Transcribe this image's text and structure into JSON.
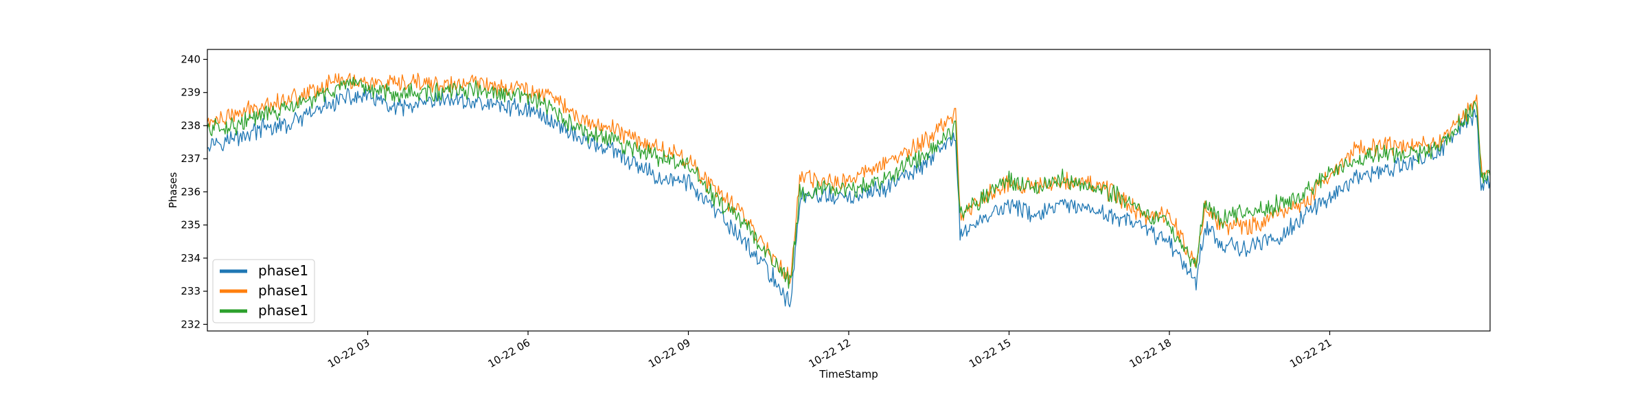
{
  "chart_data": {
    "type": "line",
    "title": "",
    "xlabel": "TimeStamp",
    "ylabel": "Phases",
    "xlim": [
      "2023-10-22 00:00",
      "2023-10-23 00:00"
    ],
    "ylim": [
      231.8,
      240.3
    ],
    "grid": false,
    "legend_position": "lower-left",
    "x_ticks": [
      {
        "at": "2023-10-22 03:00",
        "label": "10-22 03"
      },
      {
        "at": "2023-10-22 06:00",
        "label": "10-22 06"
      },
      {
        "at": "2023-10-22 09:00",
        "label": "10-22 09"
      },
      {
        "at": "2023-10-22 12:00",
        "label": "10-22 12"
      },
      {
        "at": "2023-10-22 15:00",
        "label": "10-22 15"
      },
      {
        "at": "2023-10-22 18:00",
        "label": "10-22 18"
      },
      {
        "at": "2023-10-22 21:00",
        "label": "10-22 21"
      }
    ],
    "y_ticks": [
      232,
      233,
      234,
      235,
      236,
      237,
      238,
      239,
      240
    ],
    "x": [
      "2023-10-22 00:00",
      "2023-10-22 00:30",
      "2023-10-22 01:00",
      "2023-10-22 01:30",
      "2023-10-22 02:00",
      "2023-10-22 02:30",
      "2023-10-22 03:00",
      "2023-10-22 03:30",
      "2023-10-22 04:00",
      "2023-10-22 04:30",
      "2023-10-22 05:00",
      "2023-10-22 05:30",
      "2023-10-22 06:00",
      "2023-10-22 06:30",
      "2023-10-22 07:00",
      "2023-10-22 07:30",
      "2023-10-22 08:00",
      "2023-10-22 08:30",
      "2023-10-22 09:00",
      "2023-10-22 09:30",
      "2023-10-22 10:00",
      "2023-10-22 10:30",
      "2023-10-22 10:55",
      "2023-10-22 11:05",
      "2023-10-22 11:30",
      "2023-10-22 12:00",
      "2023-10-22 12:30",
      "2023-10-22 13:00",
      "2023-10-22 13:30",
      "2023-10-22 14:00",
      "2023-10-22 14:05",
      "2023-10-22 14:30",
      "2023-10-22 15:00",
      "2023-10-22 15:30",
      "2023-10-22 16:00",
      "2023-10-22 16:30",
      "2023-10-22 17:00",
      "2023-10-22 17:30",
      "2023-10-22 18:00",
      "2023-10-22 18:30",
      "2023-10-22 18:40",
      "2023-10-22 19:00",
      "2023-10-22 19:30",
      "2023-10-22 20:00",
      "2023-10-22 20:30",
      "2023-10-22 21:00",
      "2023-10-22 21:30",
      "2023-10-22 22:00",
      "2023-10-22 22:30",
      "2023-10-22 23:00",
      "2023-10-22 23:30",
      "2023-10-22 23:45",
      "2023-10-22 23:50",
      "2023-10-23 00:00"
    ],
    "series": [
      {
        "name": "phase1",
        "color": "#1f77b4",
        "values": [
          237.5,
          237.6,
          237.9,
          238.0,
          238.4,
          238.8,
          238.9,
          238.5,
          238.6,
          238.8,
          238.7,
          238.6,
          238.5,
          238.1,
          237.6,
          237.3,
          236.8,
          236.4,
          236.3,
          235.4,
          234.6,
          233.6,
          232.6,
          235.8,
          235.9,
          235.8,
          236.0,
          236.4,
          236.9,
          237.7,
          234.7,
          235.2,
          235.6,
          235.3,
          235.6,
          235.4,
          235.3,
          234.9,
          234.5,
          233.3,
          235.0,
          234.4,
          234.3,
          234.6,
          235.2,
          235.9,
          236.4,
          236.6,
          236.9,
          237.2,
          238.0,
          238.4,
          236.2,
          236.3
        ]
      },
      {
        "name": "phase1",
        "color": "#ff7f0e",
        "values": [
          238.1,
          238.3,
          238.6,
          238.8,
          239.1,
          239.4,
          239.3,
          239.2,
          239.3,
          239.2,
          239.3,
          239.2,
          239.1,
          238.9,
          238.1,
          238.0,
          237.6,
          237.3,
          237.0,
          236.0,
          235.4,
          234.2,
          233.4,
          236.4,
          236.3,
          236.3,
          236.8,
          237.1,
          237.6,
          238.4,
          235.3,
          235.8,
          236.3,
          236.1,
          236.4,
          236.3,
          235.9,
          235.3,
          235.3,
          233.8,
          235.5,
          235.0,
          234.9,
          235.4,
          235.6,
          236.5,
          237.3,
          237.4,
          237.3,
          237.5,
          238.3,
          238.9,
          236.7,
          236.6
        ]
      },
      {
        "name": "phase1",
        "color": "#2ca02c",
        "values": [
          237.9,
          238.0,
          238.3,
          238.5,
          238.8,
          239.2,
          239.1,
          239.0,
          239.0,
          239.0,
          239.1,
          238.9,
          238.9,
          238.4,
          237.8,
          237.6,
          237.3,
          237.0,
          236.8,
          235.8,
          235.1,
          234.1,
          233.3,
          236.0,
          236.1,
          236.0,
          236.3,
          236.7,
          237.2,
          238.0,
          235.4,
          235.8,
          236.4,
          236.1,
          236.4,
          236.2,
          235.9,
          235.4,
          235.0,
          233.8,
          235.6,
          235.2,
          235.4,
          235.6,
          235.9,
          236.6,
          236.9,
          237.2,
          237.1,
          237.3,
          238.2,
          238.6,
          236.5,
          236.5
        ]
      }
    ]
  }
}
